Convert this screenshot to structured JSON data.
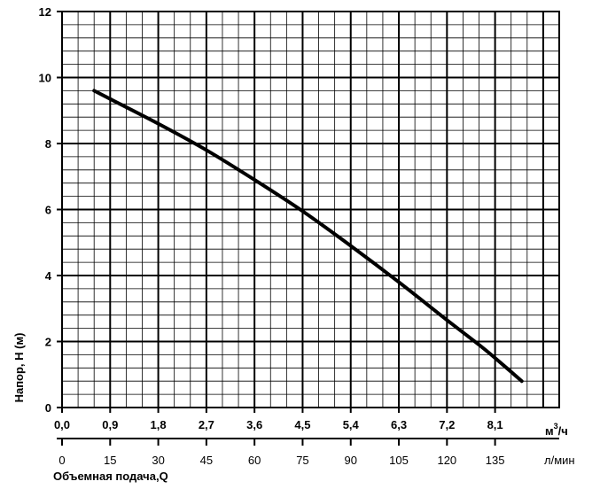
{
  "chart_data": {
    "type": "line",
    "ylabel": "Напор, Н (м)",
    "xlabel": "Объемная подача,Q",
    "ylim": [
      0,
      12
    ],
    "xlim": [
      0,
      9.3
    ],
    "yticks": [
      "0",
      "2",
      "4",
      "6",
      "8",
      "10",
      "12"
    ],
    "xticks_m3h": [
      "0,0",
      "0,9",
      "1,8",
      "2,7",
      "3,6",
      "4,5",
      "5,4",
      "6,3",
      "7,2",
      "8,1"
    ],
    "xunit_m3h": "м",
    "xunit_m3h_sup": "3",
    "xunit_m3h_tail": "/ч",
    "xticks_lmin": [
      "0",
      "15",
      "30",
      "45",
      "60",
      "75",
      "90",
      "105",
      "120",
      "135"
    ],
    "xunit_lmin": "л/мин",
    "grid": true,
    "series": [
      {
        "x": [
          0.6,
          0.9,
          1.8,
          2.7,
          3.6,
          4.5,
          5.4,
          6.3,
          7.2,
          7.8,
          8.1,
          8.6
        ],
        "y": [
          9.6,
          9.35,
          8.6,
          7.8,
          6.9,
          5.95,
          4.9,
          3.8,
          2.65,
          1.9,
          1.5,
          0.8
        ]
      }
    ]
  }
}
